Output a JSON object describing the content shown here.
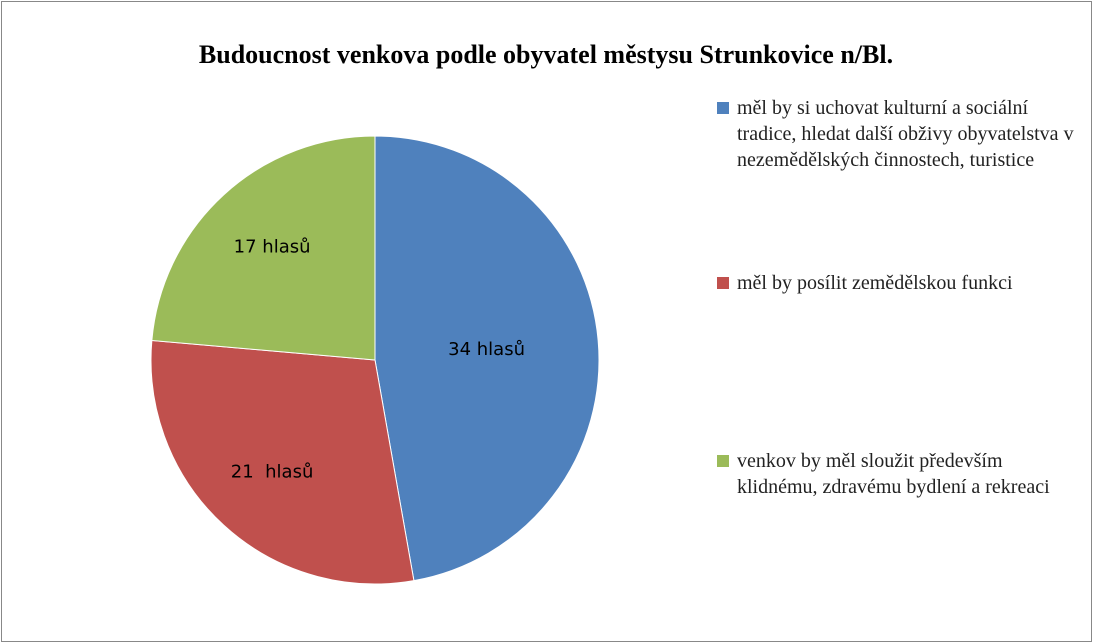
{
  "chart_data": {
    "type": "pie",
    "title": "Budoucnost venkova podle obyvatel městysu Strunkovice n/Bl.",
    "categories": [
      "měl by si uchovat kulturní a sociální tradice, hledat další obživy obyvatelstva v nezemědělských činnostech, turistice",
      "měl by posílit zemědělskou funkci",
      "venkov by měl sloužit především klidnému, zdravému bydlení a rekreaci"
    ],
    "values": [
      34,
      21,
      17
    ],
    "value_labels": [
      "34 hlasů",
      "21  hlasů",
      "17 hlasů"
    ],
    "colors": [
      "#4f81bd",
      "#c0504d",
      "#9bbb59"
    ],
    "legend": "right"
  }
}
